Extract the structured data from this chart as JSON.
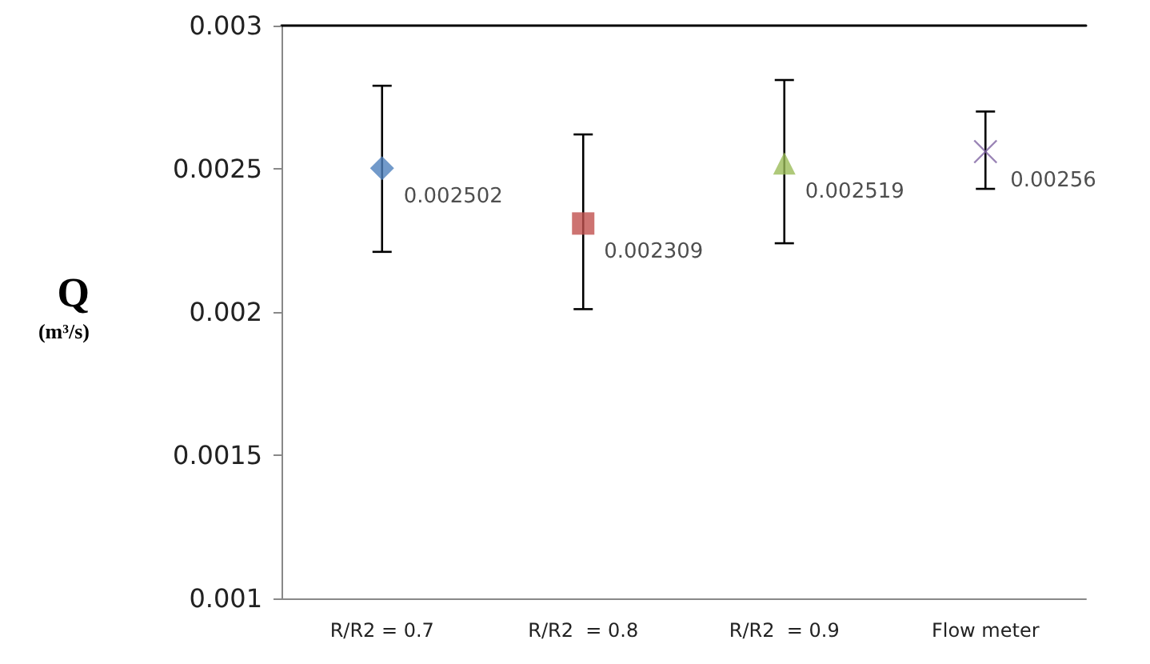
{
  "chart_data": {
    "type": "scatter",
    "ylabel": "Q (m³/s)",
    "categories": [
      "R/R2 = 0.7",
      "R/R2  = 0.8",
      "R/R2  = 0.9",
      "Flow meter"
    ],
    "series": [
      {
        "color": "#4f81bd",
        "marker": "diamond",
        "values": [
          0.002502,
          null,
          null,
          null
        ],
        "errors": [
          [
            0.00221,
            0.00279
          ],
          null,
          null,
          null
        ]
      },
      {
        "color": "#c0504d",
        "marker": "square",
        "values": [
          null,
          0.002309,
          null,
          null
        ],
        "errors": [
          null,
          [
            0.00201,
            0.00262
          ],
          null,
          null
        ]
      },
      {
        "color": "#9bbb59",
        "marker": "triangle",
        "values": [
          null,
          null,
          0.002519,
          null
        ],
        "errors": [
          null,
          null,
          [
            0.00224,
            0.00281
          ],
          null
        ]
      },
      {
        "color": "#8064a2",
        "marker": "cross",
        "values": [
          null,
          null,
          null,
          0.00256
        ],
        "errors": [
          null,
          null,
          null,
          [
            0.00243,
            0.0027
          ]
        ]
      }
    ],
    "data_labels": true,
    "ylim": [
      0.001,
      0.003
    ],
    "yticks": [
      0.001,
      0.0015,
      0.002,
      0.0025,
      0.003
    ],
    "grid": false
  }
}
